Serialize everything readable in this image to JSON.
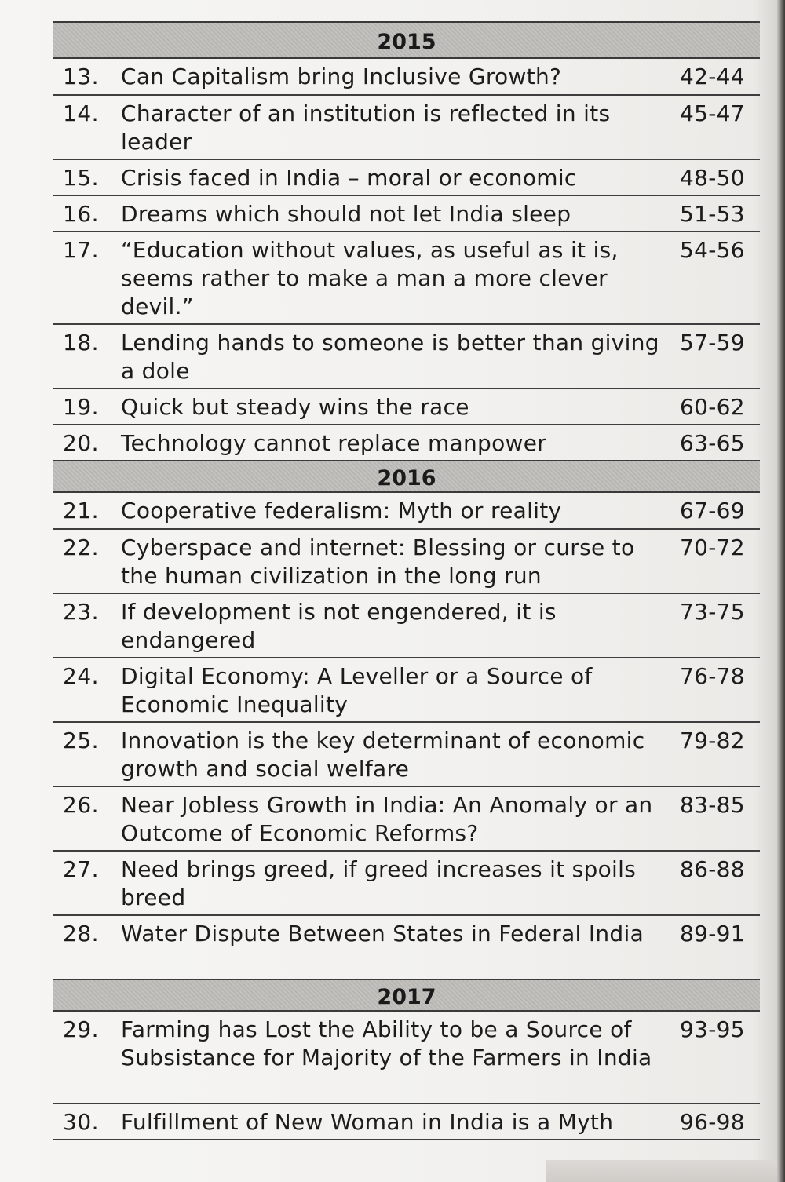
{
  "sections": [
    {
      "year": "2015",
      "entries": [
        {
          "num": "13.",
          "title": "Can Capitalism bring Inclusive Growth?",
          "pages": "42-44"
        },
        {
          "num": "14.",
          "title": "Character of an institution is reflected in its leader",
          "pages": "45-47"
        },
        {
          "num": "15.",
          "title": "Crisis faced in India – moral or economic",
          "pages": "48-50"
        },
        {
          "num": "16.",
          "title": "Dreams which should not let India sleep",
          "pages": "51-53"
        },
        {
          "num": "17.",
          "title": "“Education without values, as useful as it is, seems rather to make a man a more clever devil.”",
          "pages": "54-56"
        },
        {
          "num": "18.",
          "title": "Lending hands to someone is better than giving a dole",
          "pages": "57-59"
        },
        {
          "num": "19.",
          "title": "Quick but steady wins the race",
          "pages": "60-62"
        },
        {
          "num": "20.",
          "title": "Technology cannot replace manpower",
          "pages": "63-65"
        }
      ]
    },
    {
      "year": "2016",
      "entries": [
        {
          "num": "21.",
          "title": "Cooperative federalism: Myth or reality",
          "pages": "67-69"
        },
        {
          "num": "22.",
          "title": "Cyberspace and internet: Blessing or curse to the human civilization in the long run",
          "pages": "70-72"
        },
        {
          "num": "23.",
          "title": "If development is not engendered, it is endangered",
          "pages": "73-75"
        },
        {
          "num": "24.",
          "title": "Digital Economy: A Leveller or a Source of Economic Inequality",
          "pages": "76-78"
        },
        {
          "num": "25.",
          "title": "Innovation is the key determinant of economic growth and social welfare",
          "pages": "79-82"
        },
        {
          "num": "26.",
          "title": "Near Jobless Growth in India: An Anomaly or an Outcome of Economic Reforms?",
          "pages": "83-85"
        },
        {
          "num": "27.",
          "title": "Need brings greed, if greed increases it spoils breed",
          "pages": "86-88"
        },
        {
          "num": "28.",
          "title": "Water Dispute Between States in Federal India",
          "pages": "89-91"
        }
      ]
    },
    {
      "year": "2017",
      "entries": [
        {
          "num": "29.",
          "title": "Farming has Lost the Ability to be a Source of Subsistance for Majority of the Farmers in India",
          "pages": "93-95"
        },
        {
          "num": "30.",
          "title": "Fulfillment of New Woman in India is a Myth",
          "pages": "96-98"
        }
      ]
    }
  ]
}
